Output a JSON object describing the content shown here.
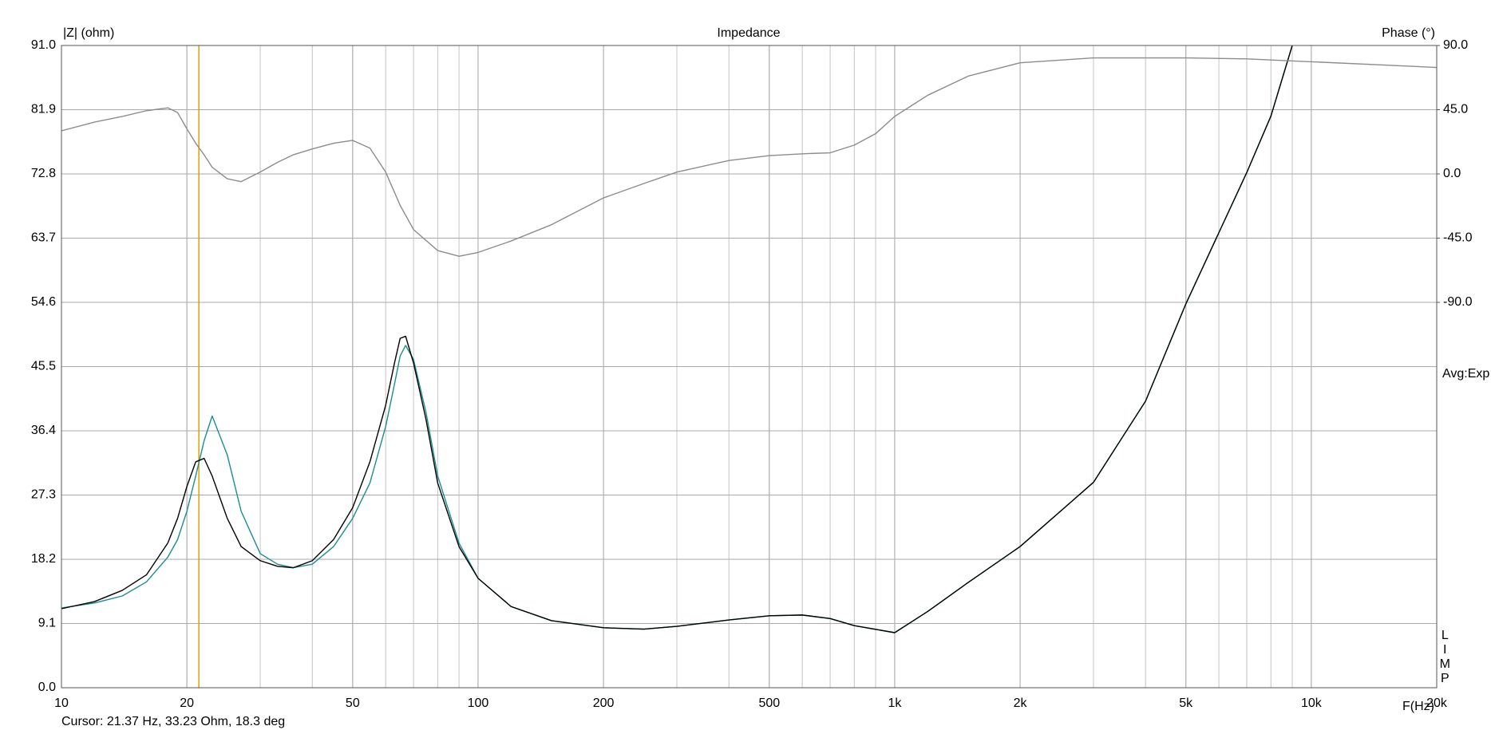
{
  "chart_data": {
    "type": "line",
    "title": "Impedance",
    "y_label": "|Z| (ohm)",
    "y2_label": "Phase (°)",
    "x_label": "F(Hz)",
    "annotations": [
      "Avg:Exp",
      "LIMP"
    ],
    "cursor": {
      "x": 21.37,
      "label": "Cursor: 21.37 Hz, 33.23 Ohm, 18.3 deg",
      "color": "#e0a000"
    },
    "x_scale": "log",
    "grid": true,
    "xlim": [
      10,
      20000
    ],
    "ylim": [
      0,
      91
    ],
    "y2lim": [
      -360,
      90
    ],
    "xticks": [
      10,
      20,
      50,
      100,
      200,
      500,
      {
        "value": 1000,
        "label": "1k"
      },
      {
        "value": 2000,
        "label": "2k"
      },
      {
        "value": 5000,
        "label": "5k"
      },
      {
        "value": 10000,
        "label": "10k"
      },
      {
        "value": 20000,
        "label": "20k"
      }
    ],
    "yticks": [
      {
        "value": 0,
        "label": "0.0"
      },
      9.1,
      18.2,
      27.3,
      36.4,
      45.5,
      54.6,
      63.7,
      72.8,
      81.9,
      {
        "value": 91,
        "label": "91.0"
      }
    ],
    "y2ticks": [
      {
        "value": -90,
        "label": "-90.0"
      },
      {
        "value": -45,
        "label": "-45.0"
      },
      {
        "value": 0,
        "label": "0.0"
      },
      {
        "value": 45,
        "label": "45.0"
      },
      {
        "value": 90,
        "label": "90.0"
      }
    ],
    "series": [
      {
        "color": "#1a8f8f",
        "x": [
          10,
          12,
          14,
          16,
          18,
          19,
          20,
          21,
          22,
          23,
          25,
          27,
          30,
          33,
          36,
          40,
          45,
          50,
          55,
          60,
          63,
          65,
          67,
          70,
          75,
          80,
          90,
          100,
          120,
          150,
          200,
          250,
          300,
          400,
          500,
          600,
          700,
          800,
          1000,
          1200,
          1500,
          2000,
          3000,
          4000,
          5000,
          7000,
          8000,
          9000
        ],
        "values": [
          11.3,
          12.0,
          13.0,
          15,
          18.5,
          21,
          25,
          30,
          35,
          38.5,
          33,
          25,
          19,
          17.5,
          17.0,
          17.5,
          20,
          24,
          29,
          37,
          43,
          47,
          48.5,
          46.5,
          39,
          30,
          20.5,
          15.5,
          11.5,
          9.5,
          8.5,
          8.3,
          8.7,
          9.6,
          10.2,
          10.3,
          9.8,
          8.8,
          7.8,
          10.8,
          14.9,
          20,
          29.1,
          40.6,
          54.4,
          73,
          81,
          91
        ]
      },
      {
        "color": "#000000",
        "x": [
          10,
          12,
          14,
          16,
          18,
          19,
          20,
          21,
          22,
          23,
          25,
          27,
          30,
          33,
          36,
          40,
          45,
          50,
          55,
          60,
          63,
          65,
          67,
          70,
          75,
          80,
          90,
          100,
          120,
          150,
          200,
          250,
          300,
          400,
          500,
          600,
          700,
          800,
          1000,
          1200,
          1500,
          2000,
          3000,
          4000,
          5000,
          7000,
          8000,
          9000
        ],
        "values": [
          11.2,
          12.2,
          13.8,
          16.0,
          20.5,
          24,
          28.5,
          32,
          32.5,
          30,
          24,
          20,
          18,
          17.2,
          17.0,
          18.0,
          21,
          25.5,
          32,
          40,
          46,
          49.5,
          49.8,
          46,
          38,
          29,
          20,
          15.5,
          11.5,
          9.5,
          8.5,
          8.3,
          8.7,
          9.6,
          10.2,
          10.3,
          9.8,
          8.8,
          7.8,
          10.8,
          14.9,
          20,
          29.1,
          40.6,
          54.4,
          73,
          81,
          91
        ]
      },
      {
        "color": "#8c8c8c",
        "axis": "y2",
        "x": [
          10,
          12,
          14,
          16,
          18,
          19,
          20,
          21,
          22,
          23,
          25,
          27,
          30,
          33,
          36,
          40,
          45,
          50,
          55,
          60,
          65,
          70,
          80,
          90,
          100,
          120,
          150,
          200,
          250,
          300,
          400,
          500,
          600,
          700,
          800,
          900,
          1000,
          1200,
          1500,
          2000,
          3000,
          5000,
          7000,
          10000,
          20000
        ],
        "values": [
          30.2,
          36.3,
          40.3,
          44.3,
          46.3,
          43,
          31.6,
          21.5,
          13.4,
          4.7,
          -3.4,
          -5.4,
          1.3,
          8.1,
          13.4,
          17.5,
          21.5,
          23.5,
          18.1,
          1.3,
          -22,
          -39,
          -53.7,
          -57.7,
          -55,
          -47,
          -35.6,
          -16.8,
          -6.7,
          1.3,
          9.4,
          12.8,
          14.1,
          14.8,
          20.2,
          28.2,
          40.3,
          55.1,
          68.5,
          77.9,
          81.3,
          81.3,
          80.6,
          78.6,
          74.6
        ]
      }
    ]
  }
}
